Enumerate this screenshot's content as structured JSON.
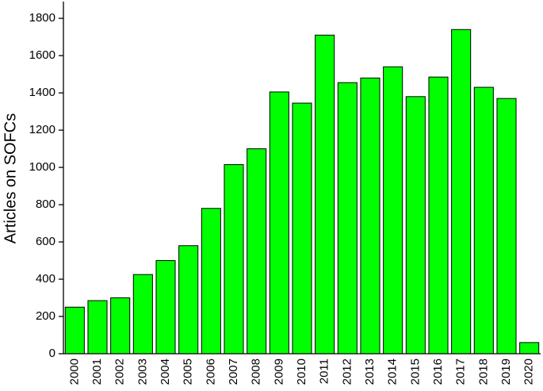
{
  "chart_data": {
    "type": "bar",
    "y_label": "Articles on SOFCs",
    "categories": [
      "2000",
      "2001",
      "2002",
      "2003",
      "2004",
      "2005",
      "2006",
      "2007",
      "2008",
      "2009",
      "2010",
      "2011",
      "2012",
      "2013",
      "2014",
      "2015",
      "2016",
      "2017",
      "2018",
      "2019",
      "2020"
    ],
    "values": [
      250,
      285,
      300,
      425,
      500,
      580,
      780,
      1015,
      1100,
      1405,
      1345,
      1710,
      1455,
      1480,
      1540,
      1380,
      1485,
      1740,
      1430,
      1370,
      60
    ],
    "color": "#00ff00",
    "ylim": [
      0,
      1890
    ],
    "yticks": [
      0,
      200,
      400,
      600,
      800,
      1000,
      1200,
      1400,
      1600,
      1800
    ]
  }
}
